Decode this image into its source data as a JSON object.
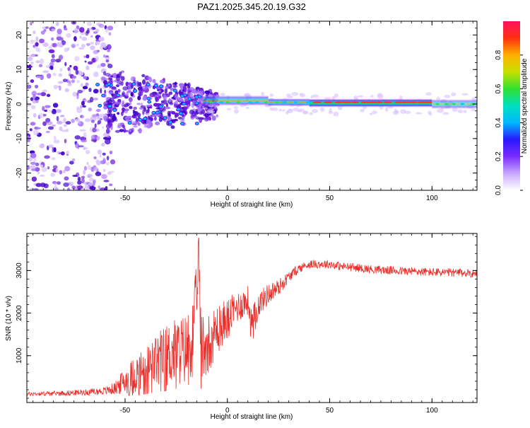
{
  "title": "PAZ1.2025.345.20.19.G32",
  "colors": {
    "snr_line": "#e8302c",
    "blob_dim": "#d9c2ff",
    "blob_mid": "#a873ff",
    "blob_strong": "#6a1ad8",
    "blob_core": "#3d00c8",
    "band_low": "#4a1bff",
    "band_mid": "#00c8f0",
    "band_hi": "#2ae05a",
    "band_peak": "#ff3b1c"
  },
  "chart_data": [
    {
      "type": "heatmap",
      "name": "spectrogram",
      "xlabel": "Height of straight line (km)",
      "ylabel": "Frequency (Hz)",
      "xlim": [
        -98,
        122
      ],
      "ylim": [
        -25,
        24
      ],
      "xticks": [
        -50,
        0,
        50,
        100
      ],
      "yticks": [
        -20,
        -10,
        0,
        10,
        20
      ],
      "xtick_labels": [
        "-50",
        "0",
        "50",
        "100"
      ],
      "ytick_labels": [
        "-20",
        "-10",
        "0",
        "10",
        "20"
      ],
      "signal_band": {
        "description": "dominant ridge near 0 Hz",
        "segments": [
          {
            "x0": -12,
            "x1": 20,
            "center_hz": 1.0,
            "half_width_hz": 1.6,
            "peak": 0.7
          },
          {
            "x0": 20,
            "x1": 40,
            "center_hz": 0.5,
            "half_width_hz": 1.2,
            "peak": 0.8
          },
          {
            "x0": 40,
            "x1": 100,
            "center_hz": 0.3,
            "half_width_hz": 1.3,
            "peak": 1.0
          },
          {
            "x0": 100,
            "x1": 122,
            "center_hz": 0.0,
            "half_width_hz": 1.5,
            "peak": 0.6
          }
        ]
      }
    },
    {
      "type": "colorbar",
      "name": "amplitude-colorbar",
      "label": "Normalized spectral amplitude",
      "range": [
        0,
        1
      ],
      "ticks": [
        0.0,
        0.2,
        0.4,
        0.6,
        0.8
      ],
      "tick_labels": [
        "0.0",
        "0.2",
        "0.4",
        "0.6",
        "0.8"
      ],
      "stops": [
        "#ffffff",
        "#c8a8ff",
        "#7a2cff",
        "#2a18ff",
        "#00b8ff",
        "#00e0c0",
        "#30e030",
        "#c8e000",
        "#ffb000",
        "#ff3010",
        "#ff1060"
      ]
    },
    {
      "type": "line",
      "name": "snr",
      "xlabel": "Height of straight line (km)",
      "ylabel": "SNR (10 * v/v)",
      "xlim": [
        -98,
        122
      ],
      "ylim": [
        -100,
        3870
      ],
      "xticks": [
        -50,
        0,
        50,
        100
      ],
      "yticks": [
        1000,
        2000,
        3000
      ],
      "xtick_labels": [
        "-50",
        "0",
        "50",
        "100"
      ],
      "ytick_labels": [
        "1000",
        "2000",
        "3000"
      ],
      "series": [
        {
          "name": "SNR",
          "x": [
            -98,
            -90,
            -80,
            -70,
            -60,
            -55,
            -50,
            -45,
            -40,
            -35,
            -30,
            -25,
            -20,
            -17,
            -15,
            -14,
            -13,
            -10,
            -5,
            0,
            5,
            10,
            12,
            15,
            20,
            25,
            30,
            35,
            40,
            45,
            50,
            55,
            60,
            70,
            80,
            90,
            100,
            110,
            122
          ],
          "y": [
            100,
            110,
            120,
            140,
            170,
            230,
            420,
            560,
            700,
            860,
            1000,
            1100,
            1150,
            1500,
            2200,
            3700,
            1200,
            1300,
            1650,
            1900,
            2150,
            2300,
            1700,
            2200,
            2450,
            2600,
            2850,
            3050,
            3150,
            3150,
            3150,
            3100,
            3080,
            3030,
            3000,
            2980,
            2960,
            2950,
            2930
          ],
          "spread": [
            50,
            50,
            60,
            70,
            90,
            150,
            320,
            450,
            550,
            650,
            750,
            800,
            850,
            900,
            1000,
            300,
            900,
            700,
            550,
            450,
            380,
            350,
            400,
            300,
            250,
            200,
            130,
            110,
            100,
            100,
            100,
            100,
            100,
            100,
            100,
            100,
            100,
            100,
            100
          ]
        }
      ]
    }
  ]
}
